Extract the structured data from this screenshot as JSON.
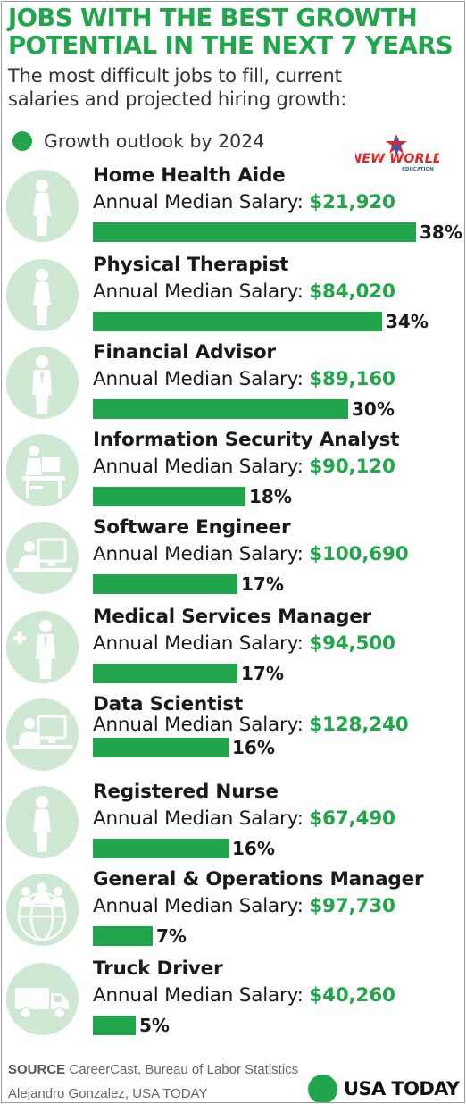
{
  "header": {
    "title_line1": "JOBS WITH THE BEST GROWTH",
    "title_line2": "POTENTIAL IN THE NEXT 7 YEARS",
    "subtitle_line1": "The most difficult jobs to fill, current",
    "subtitle_line2": "salaries and projected hiring growth:",
    "legend_label": "Growth outlook by 2024"
  },
  "watermark": {
    "text_line1": "NEW WORLD",
    "text_line2": "EDUCATION"
  },
  "colors": {
    "accent": "#22a64c",
    "icon_bg": "#cfe8d3",
    "icon_fg": "#ffffff"
  },
  "salary_label": "Annual Median Salary:",
  "chart_data": {
    "type": "bar",
    "title": "JOBS WITH THE BEST GROWTH POTENTIAL IN THE NEXT 7 YEARS",
    "subtitle": "The most difficult jobs to fill, current salaries and projected hiring growth:",
    "legend": "Growth outlook by 2024",
    "unit": "%",
    "xlim": [
      0,
      38
    ],
    "categories": [
      "Home Health Aide",
      "Physical Therapist",
      "Financial Advisor",
      "Information Security Analyst",
      "Software Engineer",
      "Medical Services Manager",
      "Data Scientist",
      "Registered Nurse",
      "General & Operations Manager",
      "Truck Driver"
    ],
    "values": [
      38,
      34,
      30,
      18,
      17,
      17,
      16,
      16,
      7,
      5
    ],
    "value_labels": [
      "38%",
      "34%",
      "30%",
      "18%",
      "17%",
      "17%",
      "16%",
      "16%",
      "7%",
      "5%"
    ],
    "salaries": [
      "$21,920",
      "$84,020",
      "$89,160",
      "$90,120",
      "$100,690",
      "$94,500",
      "$128,240",
      "$67,490",
      "$97,730",
      "$40,260"
    ],
    "icons": [
      "woman-icon",
      "woman-icon",
      "businessman-icon",
      "desk-worker-icon",
      "computer-user-icon",
      "medical-manager-icon",
      "computer-user-icon",
      "woman-icon",
      "team-globe-icon",
      "truck-icon"
    ]
  },
  "footer": {
    "source_label": "SOURCE",
    "source_text": "CareerCast, Bureau of Labor Statistics",
    "credit": "Alejandro Gonzalez, USA TODAY",
    "brand": "USA TODAY"
  }
}
